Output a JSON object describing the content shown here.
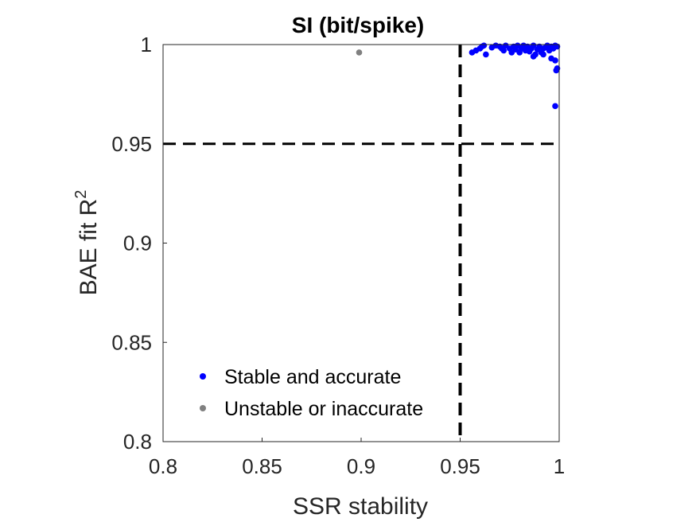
{
  "chart_data": {
    "type": "scatter",
    "title": "SI (bit/spike)",
    "xlabel": "SSR stability",
    "ylabel": "BAE fit R",
    "ylabel_superscript": "2",
    "xlim": [
      0.8,
      1.0
    ],
    "ylim": [
      0.8,
      1.0
    ],
    "xticks": [
      "0.8",
      "0.85",
      "0.9",
      "0.95",
      "1"
    ],
    "yticks": [
      "0.8",
      "0.85",
      "0.9",
      "0.95",
      "1"
    ],
    "grid": false,
    "legend_position": "bottom-left",
    "thresholds": {
      "x": 0.95,
      "y": 0.95
    },
    "series": [
      {
        "name": "Stable and accurate",
        "color": "#0000ff",
        "points": [
          [
            0.956,
            0.996
          ],
          [
            0.958,
            0.997
          ],
          [
            0.96,
            0.998
          ],
          [
            0.961,
            0.999
          ],
          [
            0.962,
            0.9995
          ],
          [
            0.963,
            0.995
          ],
          [
            0.966,
            0.9985
          ],
          [
            0.968,
            0.9995
          ],
          [
            0.97,
            0.999
          ],
          [
            0.971,
            0.998
          ],
          [
            0.972,
            0.997
          ],
          [
            0.973,
            0.9995
          ],
          [
            0.975,
            0.998
          ],
          [
            0.976,
            0.996
          ],
          [
            0.977,
            0.999
          ],
          [
            0.978,
            0.9975
          ],
          [
            0.979,
            0.9995
          ],
          [
            0.98,
            0.996
          ],
          [
            0.981,
            0.998
          ],
          [
            0.982,
            0.9995
          ],
          [
            0.983,
            0.997
          ],
          [
            0.984,
            0.999
          ],
          [
            0.985,
            0.9965
          ],
          [
            0.986,
            0.998
          ],
          [
            0.987,
            0.9995
          ],
          [
            0.988,
            0.995
          ],
          [
            0.989,
            0.9975
          ],
          [
            0.99,
            0.999
          ],
          [
            0.991,
            0.996
          ],
          [
            0.992,
            0.998
          ],
          [
            0.993,
            0.9985
          ],
          [
            0.994,
            0.9995
          ],
          [
            0.995,
            0.997
          ],
          [
            0.996,
            0.999
          ],
          [
            0.997,
            0.998
          ],
          [
            0.998,
            0.9995
          ],
          [
            0.999,
            0.999
          ],
          [
            0.987,
            0.994
          ],
          [
            0.992,
            0.995
          ],
          [
            0.996,
            0.993
          ],
          [
            0.998,
            0.992
          ],
          [
            0.999,
            0.988
          ],
          [
            0.9985,
            0.987
          ],
          [
            0.998,
            0.969
          ]
        ]
      },
      {
        "name": "Unstable or inaccurate",
        "color": "#808080",
        "points": [
          [
            0.899,
            0.996
          ]
        ]
      }
    ]
  }
}
